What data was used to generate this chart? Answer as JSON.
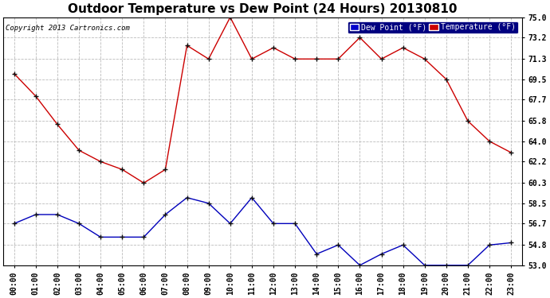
{
  "title": "Outdoor Temperature vs Dew Point (24 Hours) 20130810",
  "copyright": "Copyright 2013 Cartronics.com",
  "x_labels": [
    "00:00",
    "01:00",
    "02:00",
    "03:00",
    "04:00",
    "05:00",
    "06:00",
    "07:00",
    "08:00",
    "09:00",
    "10:00",
    "11:00",
    "12:00",
    "13:00",
    "14:00",
    "15:00",
    "16:00",
    "17:00",
    "18:00",
    "19:00",
    "20:00",
    "21:00",
    "22:00",
    "23:00"
  ],
  "temperature": [
    70.0,
    68.0,
    65.5,
    63.2,
    62.2,
    61.5,
    60.3,
    61.5,
    72.5,
    71.3,
    75.0,
    71.3,
    72.3,
    71.3,
    71.3,
    71.3,
    73.2,
    71.3,
    72.3,
    71.3,
    69.5,
    65.8,
    64.0,
    63.0
  ],
  "dew_point": [
    56.7,
    57.5,
    57.5,
    56.7,
    55.5,
    55.5,
    55.5,
    57.5,
    59.0,
    58.5,
    56.7,
    59.0,
    56.7,
    56.7,
    54.0,
    54.8,
    53.0,
    54.0,
    54.8,
    53.0,
    53.0,
    53.0,
    54.8,
    55.0
  ],
  "temp_color": "#cc0000",
  "dew_color": "#0000bb",
  "bg_color": "#ffffff",
  "plot_bg_color": "#ffffff",
  "grid_color": "#bbbbbb",
  "ylim_min": 53.0,
  "ylim_max": 75.0,
  "yticks": [
    53.0,
    54.8,
    56.7,
    58.5,
    60.3,
    62.2,
    64.0,
    65.8,
    67.7,
    69.5,
    71.3,
    73.2,
    75.0
  ],
  "legend_dew_bg": "#0000cc",
  "legend_temp_bg": "#cc0000",
  "title_fontsize": 11,
  "tick_fontsize": 7,
  "markersize": 4
}
